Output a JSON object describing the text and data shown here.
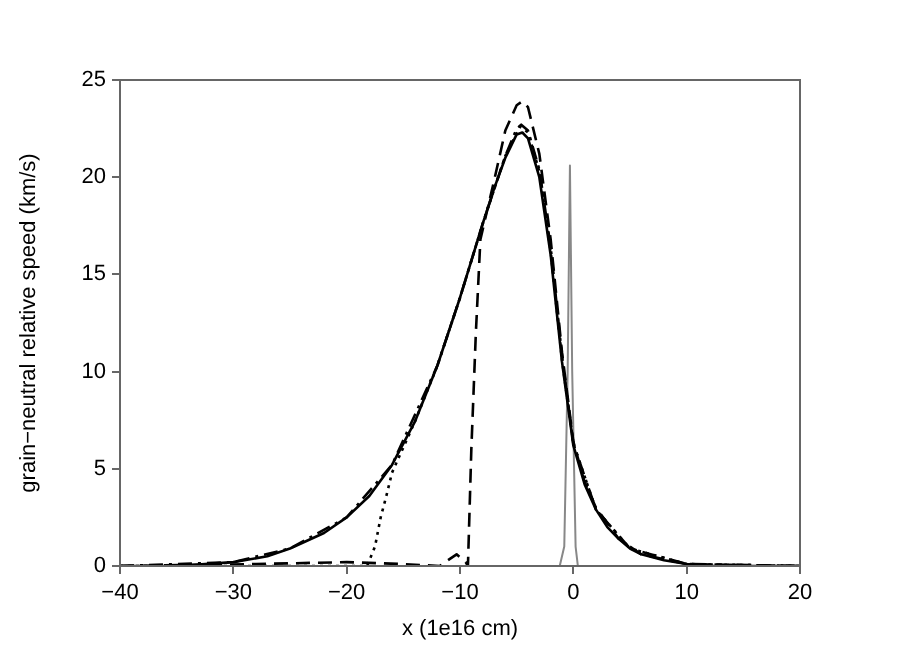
{
  "chart_data": {
    "type": "line",
    "xlabel": "x (1e16 cm)",
    "ylabel": "grain−neutral relative speed (km/s)",
    "xlim": [
      -40,
      20
    ],
    "ylim": [
      0,
      25
    ],
    "xticks": [
      {
        "value": -40,
        "label": "−40"
      },
      {
        "value": -30,
        "label": "−30"
      },
      {
        "value": -20,
        "label": "−20"
      },
      {
        "value": -10,
        "label": "−10"
      },
      0,
      10,
      20
    ],
    "yticks": [
      0,
      5,
      10,
      15,
      20,
      25
    ],
    "grid": false,
    "legend": false,
    "marker": "none",
    "series": [
      {
        "color": "#000000",
        "line_style": "solid",
        "x": [
          -40,
          -35,
          -30,
          -27,
          -25,
          -22,
          -20,
          -18,
          -16,
          -14,
          -12,
          -10,
          -8,
          -7,
          -6,
          -5,
          -4.5,
          -4,
          -3,
          -2,
          -1,
          0,
          1,
          2,
          3,
          4,
          5,
          6,
          8,
          10,
          12,
          20
        ],
        "values": [
          0,
          0,
          0.2,
          0.5,
          0.9,
          1.7,
          2.5,
          3.6,
          5.2,
          7.4,
          10.3,
          13.8,
          17.6,
          19.4,
          21,
          22.2,
          22.3,
          22,
          20,
          16,
          10.5,
          6.2,
          4.2,
          2.9,
          2,
          1.4,
          0.9,
          0.6,
          0.3,
          0.1,
          0,
          0
        ]
      },
      {
        "color": "#000000",
        "line_style": "dashed",
        "x": [
          -40,
          -28,
          -20,
          -15,
          -11.8,
          -10.3,
          -9.5,
          -9.3,
          -9,
          -8.6,
          -8.2,
          -7,
          -6,
          -5,
          -4.5,
          -4,
          -3,
          -2,
          -1,
          0,
          1,
          2,
          4,
          6,
          10,
          20
        ],
        "values": [
          0,
          0.1,
          0.2,
          0.1,
          0,
          0.6,
          0.2,
          0,
          6,
          12,
          16.8,
          19.8,
          22.4,
          23.7,
          23.9,
          23.6,
          21.2,
          16.8,
          11,
          6.4,
          4.3,
          3,
          1.4,
          0.6,
          0.1,
          0
        ]
      },
      {
        "color": "#000000",
        "line_style": "dotted",
        "x": [
          -40,
          -18.2,
          -17.5,
          -17,
          -16.5,
          -16,
          -14,
          -12,
          -10,
          -8,
          -6,
          -4.7,
          -4,
          -3,
          -2,
          -1,
          0,
          2,
          5,
          10,
          20
        ],
        "values": [
          0,
          0,
          1,
          2.5,
          3.6,
          4.8,
          7.4,
          10.3,
          13.8,
          17.6,
          21.1,
          22.6,
          22.3,
          20.3,
          16.2,
          10.6,
          6.3,
          2.9,
          0.9,
          0.1,
          0
        ]
      },
      {
        "color": "#000000",
        "line_style": "dashdot",
        "x": [
          -40,
          -30,
          -25,
          -20,
          -16,
          -12,
          -10,
          -8,
          -6,
          -5,
          -4.6,
          -4,
          -3,
          -2,
          -1,
          0,
          2,
          5,
          10,
          20
        ],
        "values": [
          0,
          0.2,
          0.9,
          2.5,
          5.2,
          10.3,
          13.8,
          17.6,
          21.1,
          22.5,
          22.7,
          22.4,
          20.4,
          16.4,
          10.8,
          6.3,
          2.9,
          0.9,
          0.1,
          0
        ]
      },
      {
        "color": "#888888",
        "line_style": "solid",
        "x": [
          -1.2,
          -0.8,
          -0.5,
          -0.3,
          -0.1,
          0.2,
          0.4
        ],
        "values": [
          0,
          1,
          10,
          20.6,
          10,
          1,
          0
        ]
      }
    ]
  }
}
